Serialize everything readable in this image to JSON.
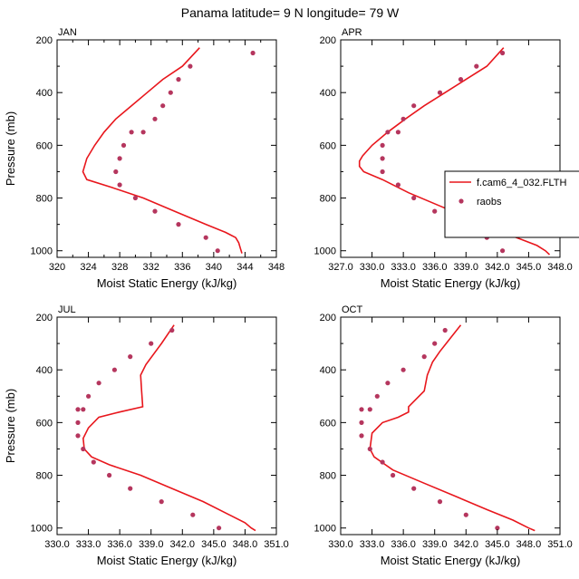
{
  "title": "Panama  latitude= 9 N longitude= 79 W",
  "colors": {
    "model": "#e8161c",
    "obs": "#b5365e"
  },
  "legend": {
    "model_label": "f.cam6_4_032.FLTH",
    "obs_label": "raobs",
    "placement": "right, overlapping APR panel"
  },
  "chart_data": [
    {
      "type": "line",
      "panel": "JAN",
      "xlabel": "Moist Static Energy (kJ/kg)",
      "ylabel": "Pressure (mb)",
      "xlim": [
        320,
        348
      ],
      "ylim": [
        1025,
        200
      ],
      "xticks": [
        "320",
        "322",
        "324",
        "326",
        "328",
        "330",
        "332",
        "334",
        "336",
        "338",
        "340",
        "342",
        "344",
        "346",
        "348"
      ],
      "xtick_labels": [
        "320",
        "324",
        "328",
        "332",
        "336",
        "340",
        "344",
        "348"
      ],
      "yticks": [
        "200",
        "400",
        "600",
        "800",
        "1000"
      ],
      "series": [
        {
          "name": "f.cam6_4_032.FLTH",
          "kind": "line",
          "x": [
            338.2,
            336,
            333.5,
            331.5,
            329.5,
            327.5,
            326,
            324.8,
            323.8,
            323.3,
            323.8,
            327,
            331,
            335,
            339,
            341.5,
            342.8,
            343.2,
            343.4,
            343.6
          ],
          "y": [
            230,
            300,
            350,
            400,
            450,
            500,
            550,
            600,
            650,
            700,
            730,
            760,
            800,
            850,
            900,
            930,
            950,
            970,
            990,
            1010
          ]
        },
        {
          "name": "raobs",
          "kind": "scatter",
          "x": [
            345,
            337,
            335.5,
            334.5,
            333.5,
            332.5,
            331,
            329.5,
            328.5,
            328,
            327.5,
            328,
            330,
            332.5,
            335.5,
            339,
            340.5
          ],
          "y": [
            250,
            300,
            350,
            400,
            450,
            500,
            550,
            550,
            600,
            650,
            700,
            750,
            800,
            850,
            900,
            950,
            1000
          ]
        }
      ]
    },
    {
      "type": "line",
      "panel": "APR",
      "xlabel": "Moist Static Energy (kJ/kg)",
      "ylabel": "",
      "xlim": [
        327,
        348
      ],
      "ylim": [
        1025,
        200
      ],
      "xticks": [
        "327.0",
        "330.0",
        "333.0",
        "336.0",
        "339.0",
        "342.0",
        "345.0",
        "348.0"
      ],
      "xtick_labels": [
        "327.0",
        "330.0",
        "333.0",
        "336.0",
        "339.0",
        "342.0",
        "345.0",
        "348.0"
      ],
      "yticks": [
        "200",
        "400",
        "600",
        "800",
        "1000"
      ],
      "series": [
        {
          "name": "f.cam6_4_032.FLTH",
          "kind": "line",
          "x": [
            342.6,
            341,
            339,
            337,
            335,
            333.2,
            331.5,
            330,
            329.1,
            328.8,
            328.8,
            329.2,
            331,
            333.5,
            336.5,
            339.5,
            342.5,
            344.5,
            345.8,
            346.6,
            347
          ],
          "y": [
            230,
            300,
            350,
            400,
            450,
            500,
            550,
            600,
            640,
            660,
            680,
            700,
            730,
            780,
            830,
            880,
            930,
            960,
            980,
            1000,
            1015
          ]
        },
        {
          "name": "raobs",
          "kind": "scatter",
          "x": [
            342.5,
            340,
            338.5,
            336.5,
            334,
            333,
            332.5,
            331.5,
            331,
            331,
            331,
            332.5,
            334,
            336,
            338.5,
            341,
            342.5
          ],
          "y": [
            250,
            300,
            350,
            400,
            450,
            500,
            550,
            550,
            600,
            650,
            700,
            750,
            800,
            850,
            900,
            950,
            1000
          ]
        }
      ]
    },
    {
      "type": "line",
      "panel": "JUL",
      "xlabel": "Moist Static Energy (kJ/kg)",
      "ylabel": "Pressure (mb)",
      "xlim": [
        330,
        351
      ],
      "ylim": [
        1025,
        200
      ],
      "xticks": [
        "330.0",
        "333.0",
        "336.0",
        "339.0",
        "342.0",
        "345.0",
        "348.0",
        "351.0"
      ],
      "xtick_labels": [
        "330.0",
        "333.0",
        "336.0",
        "339.0",
        "342.0",
        "345.0",
        "348.0",
        "351.0"
      ],
      "yticks": [
        "200",
        "400",
        "600",
        "800",
        "1000"
      ],
      "series": [
        {
          "name": "f.cam6_4_032.FLTH",
          "kind": "line",
          "x": [
            341.2,
            340,
            338.5,
            338,
            338.1,
            338.2,
            336,
            334,
            333,
            332.5,
            332.6,
            333.3,
            335,
            338,
            341,
            344,
            346.5,
            348,
            348.6,
            349
          ],
          "y": [
            230,
            300,
            380,
            420,
            480,
            540,
            560,
            580,
            620,
            660,
            700,
            730,
            760,
            800,
            850,
            900,
            950,
            980,
            1000,
            1010
          ]
        },
        {
          "name": "raobs",
          "kind": "scatter",
          "x": [
            341,
            339,
            337,
            335.5,
            334,
            333,
            332.5,
            332,
            332,
            332,
            332.5,
            333.5,
            335,
            337,
            340,
            343,
            345.5
          ],
          "y": [
            250,
            300,
            350,
            400,
            450,
            500,
            550,
            550,
            600,
            650,
            700,
            750,
            800,
            850,
            900,
            950,
            1000
          ]
        }
      ]
    },
    {
      "type": "line",
      "panel": "OCT",
      "xlabel": "Moist Static Energy (kJ/kg)",
      "ylabel": "",
      "xlim": [
        330,
        351
      ],
      "ylim": [
        1025,
        200
      ],
      "xticks": [
        "330.0",
        "333.0",
        "336.0",
        "339.0",
        "342.0",
        "345.0",
        "348.0",
        "351.0"
      ],
      "xtick_labels": [
        "330.0",
        "333.0",
        "336.0",
        "339.0",
        "342.0",
        "345.0",
        "348.0",
        "351.0"
      ],
      "yticks": [
        "200",
        "400",
        "600",
        "800",
        "1000"
      ],
      "series": [
        {
          "name": "f.cam6_4_032.FLTH",
          "kind": "line",
          "x": [
            341.5,
            340.5,
            339.5,
            338.8,
            338.3,
            338,
            337,
            336.5,
            336.5,
            335.5,
            334,
            333,
            332.8,
            333.2,
            335,
            338,
            341,
            344,
            346.5,
            348,
            348.6
          ],
          "y": [
            230,
            280,
            330,
            370,
            420,
            480,
            520,
            540,
            560,
            580,
            600,
            640,
            700,
            730,
            780,
            830,
            880,
            930,
            970,
            1000,
            1010
          ]
        },
        {
          "name": "raobs",
          "kind": "scatter",
          "x": [
            340,
            339,
            338,
            336,
            334.5,
            333.5,
            332.8,
            332,
            332,
            332,
            332.8,
            334,
            335,
            337,
            339.5,
            342,
            345
          ],
          "y": [
            250,
            300,
            350,
            400,
            450,
            500,
            550,
            550,
            600,
            650,
            700,
            750,
            800,
            850,
            900,
            950,
            1000
          ]
        }
      ]
    }
  ]
}
